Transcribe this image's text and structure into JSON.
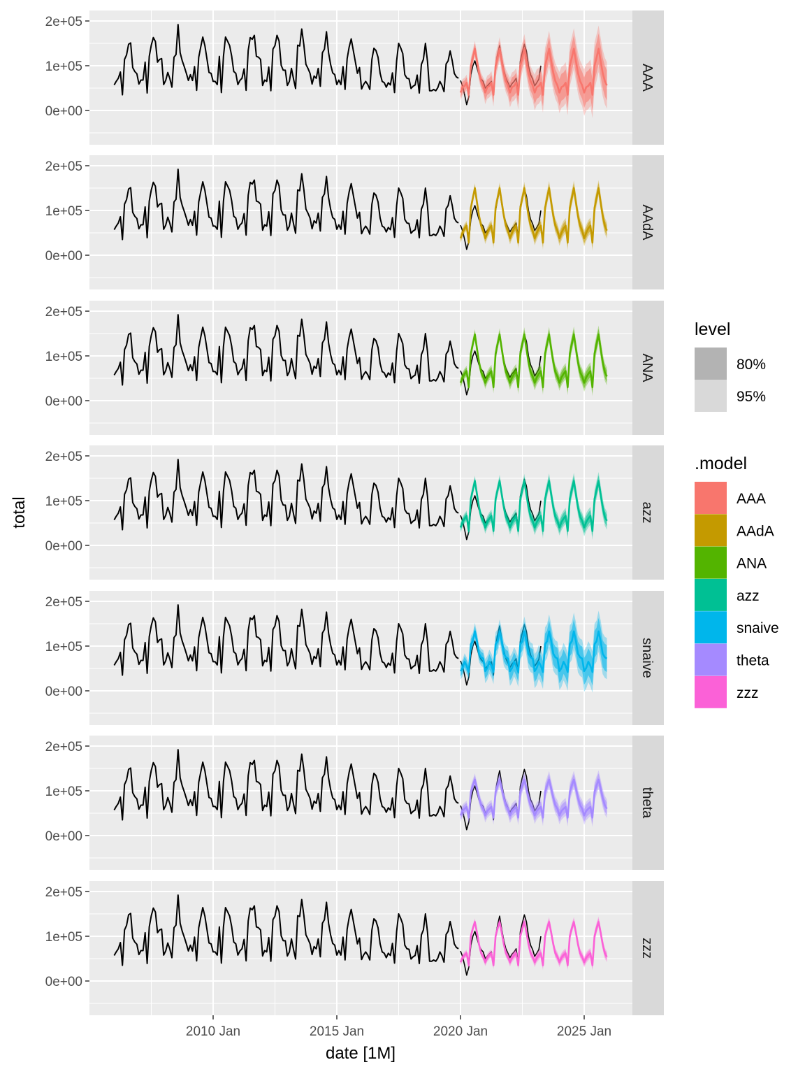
{
  "chart_data": {
    "type": "line",
    "facet_by": ".model",
    "xlabel": "date [1M]",
    "ylabel": "total",
    "x_ticks": [
      "2010 Jan",
      "2015 Jan",
      "2020 Jan",
      "2025 Jan"
    ],
    "y_ticks": [
      {
        "value": 200000,
        "label": "2e+05"
      },
      {
        "value": 100000,
        "label": "1e+05"
      },
      {
        "value": 0,
        "label": "0e+00"
      }
    ],
    "xlim": [
      "2005 Jan",
      "2026 Dec"
    ],
    "ylim": [
      -76600,
      223400
    ],
    "grid": true,
    "legend_position": "right",
    "history": {
      "start": "2006 Jan",
      "color": "#000000",
      "values": [
        57000,
        65000,
        72000,
        86000,
        35000,
        114000,
        124000,
        148000,
        151000,
        96000,
        87000,
        82000,
        59000,
        68000,
        68000,
        108000,
        39000,
        121000,
        146000,
        163000,
        154000,
        108000,
        114000,
        116000,
        58000,
        67000,
        85000,
        71000,
        52000,
        119000,
        125000,
        192000,
        129000,
        111000,
        98000,
        83000,
        67000,
        80000,
        67000,
        98000,
        45000,
        119000,
        142000,
        164000,
        145000,
        116000,
        85000,
        83000,
        65000,
        65000,
        58000,
        121000,
        40000,
        121000,
        164000,
        155000,
        145000,
        121000,
        87000,
        83000,
        58000,
        67000,
        72000,
        93000,
        45000,
        134000,
        163000,
        159000,
        168000,
        121000,
        119000,
        114000,
        56000,
        68000,
        65000,
        97000,
        44000,
        137000,
        145000,
        168000,
        155000,
        101000,
        90000,
        90000,
        56000,
        65000,
        94000,
        70000,
        49000,
        146000,
        144000,
        182000,
        147000,
        103000,
        94000,
        83000,
        59000,
        77000,
        72000,
        94000,
        54000,
        129000,
        137000,
        176000,
        129000,
        103000,
        84000,
        80000,
        58000,
        68000,
        58000,
        98000,
        47000,
        116000,
        142000,
        160000,
        134000,
        109000,
        83000,
        96000,
        48000,
        58000,
        65000,
        58000,
        47000,
        114000,
        139000,
        134000,
        119000,
        83000,
        65000,
        62000,
        52000,
        62000,
        57000,
        84000,
        40000,
        111000,
        150000,
        140000,
        127000,
        80000,
        72000,
        71000,
        49000,
        54000,
        57000,
        79000,
        39000,
        103000,
        114000,
        150000,
        109000,
        44000,
        44000,
        47000,
        44000,
        51000,
        65000,
        56000,
        42000,
        104000,
        111000,
        133000,
        111000,
        83000,
        75000,
        72000
      ]
    },
    "actual_future": {
      "start": "2020 Jan",
      "color": "#000000",
      "values": [
        67000,
        55000,
        35000,
        13000,
        30000,
        80000,
        100000,
        111000,
        95000,
        80000,
        70000,
        65000,
        50000,
        55000,
        60000,
        65000,
        35000,
        100000,
        125000,
        145000,
        115000,
        90000,
        72000,
        62000,
        52000,
        60000,
        65000,
        72000,
        40000,
        110000,
        130000,
        148000,
        132000,
        100000,
        80000,
        70000,
        55000,
        62000,
        70000,
        100000
      ]
    },
    "legend": {
      "level": {
        "title": "level",
        "items": [
          {
            "label": "80%",
            "color": "#B3B3B3"
          },
          {
            "label": "95%",
            "color": "#D9D9D9"
          }
        ]
      },
      "model": {
        "title": ".model"
      }
    },
    "forecast_start": "2020 Jan",
    "series": [
      {
        "name": "AAA",
        "color": "#F8766D",
        "mean": [
          40000,
          52000,
          55000,
          62000,
          35000,
          100000,
          118000,
          138000,
          110000,
          84000,
          66000,
          56000,
          40000,
          52000,
          55000,
          62000,
          35000,
          100000,
          118000,
          138000,
          110000,
          84000,
          66000,
          56000,
          40000,
          52000,
          55000,
          62000,
          35000,
          100000,
          118000,
          138000,
          110000,
          84000,
          66000,
          56000,
          40000,
          52000,
          55000,
          62000,
          35000,
          100000,
          118000,
          138000,
          110000,
          84000,
          66000,
          56000,
          40000,
          52000,
          55000,
          62000,
          35000,
          100000,
          118000,
          138000,
          110000,
          84000,
          66000,
          56000,
          40000,
          52000,
          55000,
          62000,
          35000,
          100000,
          118000,
          138000,
          110000,
          84000,
          66000,
          56000
        ],
        "pi80_halfwidth_by_year": [
          12000,
          17000,
          22000,
          26000,
          30000,
          34000
        ],
        "pi95_halfwidth_by_year": [
          18000,
          26000,
          33000,
          40000,
          46000,
          52000
        ]
      },
      {
        "name": "AAdA",
        "color": "#C49A00",
        "mean": [
          38000,
          50000,
          60000,
          66000,
          28000,
          106000,
          128000,
          150000,
          118000,
          88000,
          66000,
          55000,
          38000,
          50000,
          60000,
          66000,
          28000,
          106000,
          128000,
          150000,
          118000,
          88000,
          66000,
          55000,
          38000,
          50000,
          60000,
          66000,
          28000,
          106000,
          128000,
          150000,
          118000,
          88000,
          66000,
          55000,
          38000,
          50000,
          60000,
          66000,
          28000,
          106000,
          128000,
          150000,
          118000,
          88000,
          66000,
          55000,
          38000,
          50000,
          60000,
          66000,
          28000,
          106000,
          128000,
          150000,
          118000,
          88000,
          66000,
          55000,
          38000,
          50000,
          60000,
          66000,
          28000,
          106000,
          128000,
          150000,
          118000,
          88000,
          66000,
          55000
        ],
        "pi80_halfwidth_by_year": [
          7000,
          8000,
          9000,
          10000,
          11000,
          12000
        ],
        "pi95_halfwidth_by_year": [
          11000,
          13000,
          14000,
          16000,
          17000,
          18000
        ]
      },
      {
        "name": "ANA",
        "color": "#53B400",
        "mean": [
          40000,
          52000,
          60000,
          66000,
          30000,
          105000,
          127000,
          148000,
          116000,
          86000,
          64000,
          54000,
          40000,
          52000,
          60000,
          66000,
          30000,
          105000,
          127000,
          148000,
          116000,
          86000,
          64000,
          54000,
          40000,
          52000,
          60000,
          66000,
          30000,
          105000,
          127000,
          148000,
          116000,
          86000,
          64000,
          54000,
          40000,
          52000,
          60000,
          66000,
          30000,
          105000,
          127000,
          148000,
          116000,
          86000,
          64000,
          54000,
          40000,
          52000,
          60000,
          66000,
          30000,
          105000,
          127000,
          148000,
          116000,
          86000,
          64000,
          54000,
          40000,
          52000,
          60000,
          66000,
          30000,
          105000,
          127000,
          148000,
          116000,
          86000,
          64000,
          54000
        ],
        "pi80_halfwidth_by_year": [
          8000,
          9000,
          10000,
          11000,
          12000,
          13000
        ],
        "pi95_halfwidth_by_year": [
          12000,
          14000,
          16000,
          17000,
          18000,
          20000
        ]
      },
      {
        "name": "azz",
        "color": "#00C094",
        "mean": [
          40000,
          52000,
          60000,
          66000,
          32000,
          104000,
          124000,
          144000,
          114000,
          85000,
          64000,
          55000,
          40000,
          52000,
          60000,
          66000,
          32000,
          104000,
          124000,
          144000,
          114000,
          85000,
          64000,
          55000,
          40000,
          52000,
          60000,
          66000,
          32000,
          104000,
          124000,
          144000,
          114000,
          85000,
          64000,
          55000,
          40000,
          52000,
          60000,
          66000,
          32000,
          104000,
          124000,
          144000,
          114000,
          85000,
          64000,
          55000,
          40000,
          52000,
          60000,
          66000,
          32000,
          104000,
          124000,
          144000,
          114000,
          85000,
          64000,
          55000,
          40000,
          52000,
          60000,
          66000,
          32000,
          104000,
          124000,
          144000,
          114000,
          85000,
          64000,
          55000
        ],
        "pi80_halfwidth_by_year": [
          8000,
          9000,
          10000,
          11000,
          12000,
          13000
        ],
        "pi95_halfwidth_by_year": [
          12000,
          14000,
          16000,
          17000,
          18000,
          20000
        ]
      },
      {
        "name": "snaive",
        "color": "#00B6EB",
        "mean": [
          44000,
          51000,
          65000,
          56000,
          42000,
          104000,
          111000,
          133000,
          111000,
          83000,
          75000,
          72000,
          44000,
          51000,
          65000,
          56000,
          42000,
          104000,
          111000,
          133000,
          111000,
          83000,
          75000,
          72000,
          44000,
          51000,
          65000,
          56000,
          42000,
          104000,
          111000,
          133000,
          111000,
          83000,
          75000,
          72000,
          44000,
          51000,
          65000,
          56000,
          42000,
          104000,
          111000,
          133000,
          111000,
          83000,
          75000,
          72000,
          44000,
          51000,
          65000,
          56000,
          42000,
          104000,
          111000,
          133000,
          111000,
          83000,
          75000,
          72000,
          44000,
          51000,
          65000,
          56000,
          42000,
          104000,
          111000,
          133000,
          111000,
          83000,
          75000,
          72000
        ],
        "pi80_halfwidth_by_year": [
          12000,
          17000,
          21000,
          24000,
          27000,
          30000
        ],
        "pi95_halfwidth_by_year": [
          19000,
          27000,
          33000,
          38000,
          42000,
          46000
        ]
      },
      {
        "name": "theta",
        "color": "#A58AFF",
        "mean": [
          45000,
          55000,
          60000,
          64000,
          40000,
          98000,
          112000,
          125000,
          105000,
          84000,
          68000,
          60000,
          45000,
          55000,
          60000,
          64000,
          40000,
          98000,
          112000,
          125000,
          105000,
          84000,
          68000,
          60000,
          45000,
          55000,
          60000,
          64000,
          40000,
          98000,
          112000,
          125000,
          105000,
          84000,
          68000,
          60000,
          45000,
          55000,
          60000,
          64000,
          40000,
          98000,
          112000,
          125000,
          105000,
          84000,
          68000,
          60000,
          45000,
          55000,
          60000,
          64000,
          40000,
          98000,
          112000,
          125000,
          105000,
          84000,
          68000,
          60000,
          45000,
          55000,
          60000,
          64000,
          40000,
          98000,
          112000,
          125000,
          105000,
          84000,
          68000,
          60000
        ],
        "pi80_halfwidth_by_year": [
          9000,
          10000,
          11000,
          12000,
          13000,
          14000
        ],
        "pi95_halfwidth_by_year": [
          14000,
          16000,
          17000,
          19000,
          20000,
          21000
        ]
      },
      {
        "name": "zzz",
        "color": "#FB61D7",
        "mean": [
          42000,
          52000,
          58000,
          62000,
          35000,
          100000,
          118000,
          132000,
          108000,
          82000,
          62000,
          54000,
          42000,
          52000,
          58000,
          62000,
          35000,
          100000,
          118000,
          132000,
          108000,
          82000,
          62000,
          54000,
          42000,
          52000,
          58000,
          62000,
          35000,
          100000,
          118000,
          132000,
          108000,
          82000,
          62000,
          54000,
          42000,
          52000,
          58000,
          62000,
          35000,
          100000,
          118000,
          132000,
          108000,
          82000,
          62000,
          54000,
          42000,
          52000,
          58000,
          62000,
          35000,
          100000,
          118000,
          132000,
          108000,
          82000,
          62000,
          54000,
          42000,
          52000,
          58000,
          62000,
          35000,
          100000,
          118000,
          132000,
          108000,
          82000,
          62000,
          54000
        ],
        "pi80_halfwidth_by_year": [
          5000,
          6000,
          6000,
          7000,
          7000,
          8000
        ],
        "pi95_halfwidth_by_year": [
          8000,
          9000,
          10000,
          11000,
          11000,
          12000
        ]
      }
    ]
  }
}
